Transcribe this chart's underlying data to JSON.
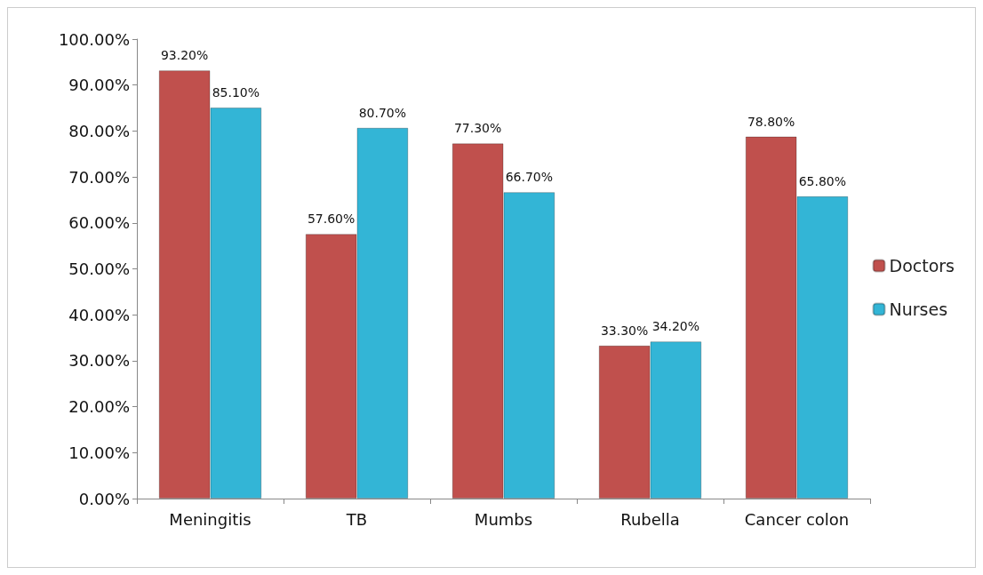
{
  "chart_data": {
    "type": "bar",
    "categories": [
      "Meningitis",
      "TB",
      "Mumbs",
      "Rubella",
      "Cancer colon"
    ],
    "series": [
      {
        "name": "Doctors",
        "color": "#c0504d",
        "values": [
          93.2,
          57.6,
          77.3,
          33.3,
          78.8
        ],
        "value_labels": [
          "93.20%",
          "57.60%",
          "77.30%",
          "33.30%",
          "78.80%"
        ]
      },
      {
        "name": "Nurses",
        "color": "#33b5d6",
        "values": [
          85.1,
          80.7,
          66.7,
          34.2,
          65.8
        ],
        "value_labels": [
          "85.10%",
          "80.70%",
          "66.70%",
          "34.20%",
          "65.80%"
        ]
      }
    ],
    "ylim": [
      0,
      100
    ],
    "yticks": [
      {
        "value": 0,
        "label": "0.00%"
      },
      {
        "value": 10,
        "label": "10.00%"
      },
      {
        "value": 20,
        "label": "20.00%"
      },
      {
        "value": 30,
        "label": "30.00%"
      },
      {
        "value": 40,
        "label": "40.00%"
      },
      {
        "value": 50,
        "label": "50.00%"
      },
      {
        "value": 60,
        "label": "60.00%"
      },
      {
        "value": 70,
        "label": "70.00%"
      },
      {
        "value": 80,
        "label": "80.00%"
      },
      {
        "value": 90,
        "label": "90.00%"
      },
      {
        "value": 100,
        "label": "100.00%"
      }
    ],
    "grid": false,
    "legend": "right"
  }
}
